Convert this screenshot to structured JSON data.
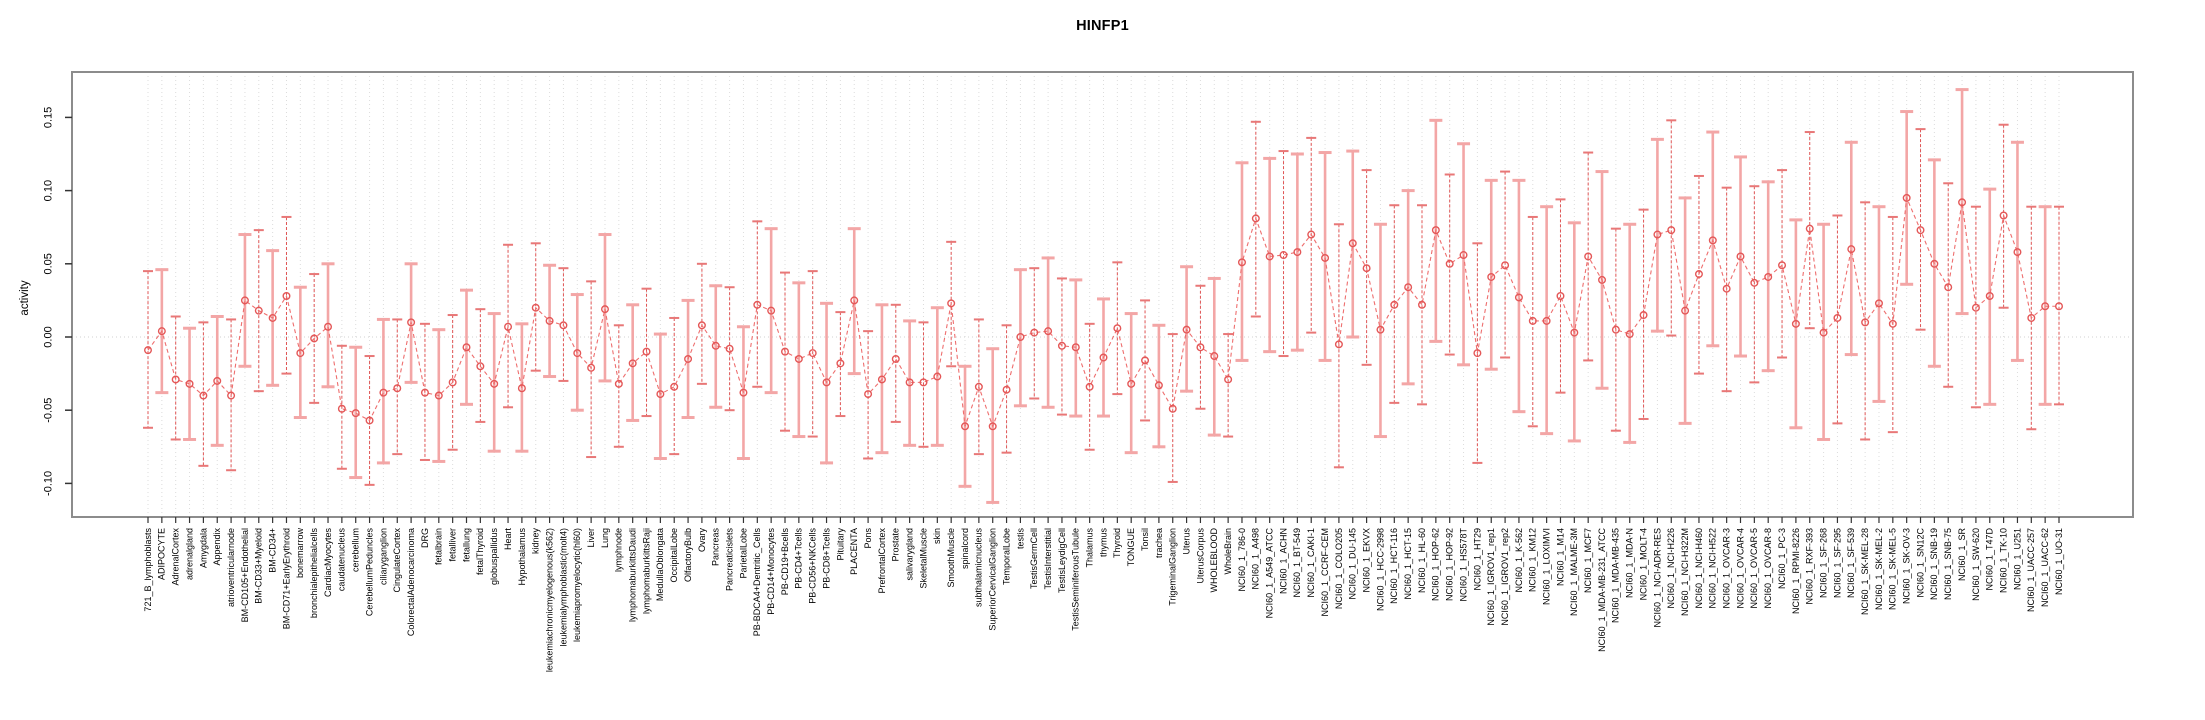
{
  "chart_data": {
    "type": "scatter",
    "error_bars": true,
    "title": "HINFP1",
    "xlabel": "",
    "ylabel": "activity",
    "ylim": [
      -0.123,
      0.181
    ],
    "yticks": [
      0.15,
      0.1,
      0.05,
      0.0,
      -0.05,
      -0.1
    ],
    "x_tick_rotation": -90,
    "grid": "vertical dotted line per category, dotted horizontal line at zero",
    "legend": "none",
    "point_color": "#e45757",
    "bar_color_a": "#e05555",
    "bar_color_b": "#f3a6a6",
    "line_color": "#ee6e6e",
    "categories": [
      "721_B_lymphoblasts",
      "ADIPOCYTE",
      "AdrenalCortex",
      "adrenalgland",
      "Amygdala",
      "Appendix",
      "atrioventricularnode",
      "BM-CD105+Endothelial",
      "BM-CD33+Myeloid",
      "BM-CD34+",
      "BM-CD71+EarlyErythroid",
      "bonemarrow",
      "bronchialepithelialcells",
      "CardiacMyocytes",
      "caudatenucleus",
      "cerebellum",
      "CerebellumPeduncles",
      "ciliaryganglion",
      "CingulateCortex",
      "ColorectalAdenocarcinoma",
      "DRG",
      "fetalbrain",
      "fetalliver",
      "fetallung",
      "fetalThyroid",
      "globuspallidus",
      "Heart",
      "Hypothalamus",
      "kidney",
      "leukemiachronicmyelogenous(k562)",
      "leukemialymphoblastic(molt4)",
      "leukemiapromyelocytic(hl60)",
      "Liver",
      "Lung",
      "lymphnode",
      "lymphomaburkittsDaudi",
      "lymphomaburkittsRaji",
      "MedullaOblongata",
      "OccipitalLobe",
      "OlfactoryBulb",
      "Ovary",
      "Pancreas",
      "Pancreaticislets",
      "ParietalLobe",
      "PB-BDCA4+Dentritic_Cells",
      "PB-CD14+Monocytes",
      "PB-CD19+Bcells",
      "PB-CD4+Tcells",
      "PB-CD56+NKCells",
      "PB-CD8+Tcells",
      "Pituitary",
      "PLACENTA",
      "Pons",
      "PrefrontalCortex",
      "Prostate",
      "salivarygland",
      "SkeletalMuscle",
      "skin",
      "SmoothMuscle",
      "spinalcord",
      "subthalamicnucleus",
      "SuperiorCervicalGanglion",
      "TemporalLobe",
      "testis",
      "TestisGermCell",
      "TestisInterstitial",
      "TestisLeydigCell",
      "TestisSeminiferousTubule",
      "Thalamus",
      "thymus",
      "Thyroid",
      "TONGUE",
      "Tonsil",
      "trachea",
      "TrigeminalGanglion",
      "Uterus",
      "UterusCorpus",
      "WHOLEBLOOD",
      "WholeBrain",
      "NCI60_1_786-0",
      "NCI60_1_A498",
      "NCI60_1_A549_ATCC",
      "NCI60_1_ACHN",
      "NCI60_1_BT-549",
      "NCI60_1_CAKI-1",
      "NCI60_1_CCRF-CEM",
      "NCI60_1_COLO205",
      "NCI60_1_DU-145",
      "NCI60_1_EKVX",
      "NCI60_1_HCC-2998",
      "NCI60_1_HCT-116",
      "NCI60_1_HCT-15",
      "NCI60_1_HL-60",
      "NCI60_1_HOP-62",
      "NCI60_1_HOP-92",
      "NCI60_1_HS578T",
      "NCI60_1_HT29",
      "NCI60_1_IGROV1_rep1",
      "NCI60_1_IGROV1_rep2",
      "NCI60_1_K-562",
      "NCI60_1_KM12",
      "NCI60_1_LOXIMVI",
      "NCI60_1_M14",
      "NCI60_1_MALME-3M",
      "NCI60_1_MCF7",
      "NCI60_1_MDA-MB-231_ATCC",
      "NCI60_1_MDA-MB-435",
      "NCI60_1_MDA-N",
      "NCI60_1_MOLT-4",
      "NCI60_1_NCI-ADR-RES",
      "NCI60_1_NCI-H226",
      "NCI60_1_NCI-H322M",
      "NCI60_1_NCI-H460",
      "NCI60_1_NCI-H522",
      "NCI60_1_OVCAR-3",
      "NCI60_1_OVCAR-4",
      "NCI60_1_OVCAR-5",
      "NCI60_1_OVCAR-8",
      "NCI60_1_PC-3",
      "NCI60_1_RPMI-8226",
      "NCI60_1_RXF-393",
      "NCI60_1_SF-268",
      "NCI60_1_SF-295",
      "NCI60_1_SF-539",
      "NCI60_1_SK-MEL-28",
      "NCI60_1_SK-MEL-2",
      "NCI60_1_SK-MEL-5",
      "NCI60_1_SK-OV-3",
      "NCI60_1_SN12C",
      "NCI60_1_SNB-19",
      "NCI60_1_SNB-75",
      "NCI60_1_SR",
      "NCI60_1_SW-620",
      "NCI60_1_T47D",
      "NCI60_1_TK-10",
      "NCI60_1_U251",
      "NCI60_1_UACC-257",
      "NCI60_1_UACC-62",
      "NCI60_1_UO-31"
    ],
    "series": [
      {
        "name": "activity",
        "values": [
          -0.009,
          0.004,
          -0.029,
          -0.032,
          -0.04,
          -0.03,
          -0.04,
          0.025,
          0.018,
          0.013,
          0.028,
          -0.011,
          -0.001,
          0.007,
          -0.049,
          -0.052,
          -0.057,
          -0.038,
          -0.035,
          0.01,
          -0.038,
          -0.04,
          -0.031,
          -0.007,
          -0.02,
          -0.032,
          0.007,
          -0.035,
          0.02,
          0.011,
          0.008,
          -0.011,
          -0.021,
          0.019,
          -0.032,
          -0.018,
          -0.01,
          -0.039,
          -0.034,
          -0.015,
          0.008,
          -0.006,
          -0.008,
          -0.038,
          0.022,
          0.018,
          -0.01,
          -0.015,
          -0.011,
          -0.031,
          -0.018,
          0.025,
          -0.039,
          -0.029,
          -0.015,
          -0.031,
          -0.031,
          -0.027,
          0.023,
          -0.061,
          -0.034,
          -0.061,
          -0.036,
          0.0,
          0.003,
          0.004,
          -0.006,
          -0.007,
          -0.034,
          -0.014,
          0.006,
          -0.032,
          -0.016,
          -0.033,
          -0.049,
          0.005,
          -0.007,
          -0.013,
          -0.029,
          0.051,
          0.081,
          0.055,
          0.056,
          0.058,
          0.07,
          0.054,
          -0.005,
          0.064,
          0.047,
          0.005,
          0.022,
          0.034,
          0.022,
          0.073,
          0.05,
          0.056,
          -0.011,
          0.041,
          0.049,
          0.027,
          0.011,
          0.011,
          0.028,
          0.003,
          0.055,
          0.039,
          0.005,
          0.002,
          0.015,
          0.07,
          0.073,
          0.018,
          0.043,
          0.066,
          0.033,
          0.055,
          0.037,
          0.041,
          0.049,
          0.009,
          0.074,
          0.003,
          0.013,
          0.06,
          0.01,
          0.023,
          0.009,
          0.095,
          0.073,
          0.05,
          0.034,
          0.092,
          0.02,
          0.028,
          0.083,
          0.058,
          0.013,
          0.021,
          0.021
        ],
        "lower": [
          -0.062,
          -0.038,
          -0.07,
          -0.07,
          -0.088,
          -0.074,
          -0.091,
          -0.02,
          -0.037,
          -0.033,
          -0.025,
          -0.055,
          -0.045,
          -0.034,
          -0.09,
          -0.096,
          -0.101,
          -0.086,
          -0.08,
          -0.031,
          -0.084,
          -0.085,
          -0.077,
          -0.046,
          -0.058,
          -0.078,
          -0.048,
          -0.078,
          -0.023,
          -0.027,
          -0.03,
          -0.05,
          -0.082,
          -0.03,
          -0.075,
          -0.057,
          -0.054,
          -0.083,
          -0.08,
          -0.055,
          -0.032,
          -0.048,
          -0.05,
          -0.083,
          -0.034,
          -0.038,
          -0.064,
          -0.068,
          -0.068,
          -0.086,
          -0.054,
          -0.025,
          -0.083,
          -0.079,
          -0.058,
          -0.074,
          -0.075,
          -0.074,
          -0.02,
          -0.102,
          -0.08,
          -0.113,
          -0.079,
          -0.047,
          -0.042,
          -0.048,
          -0.053,
          -0.054,
          -0.077,
          -0.054,
          -0.039,
          -0.079,
          -0.057,
          -0.075,
          -0.099,
          -0.037,
          -0.049,
          -0.067,
          -0.068,
          -0.016,
          0.014,
          -0.01,
          -0.013,
          -0.009,
          0.003,
          -0.016,
          -0.089,
          0.0,
          -0.019,
          -0.068,
          -0.045,
          -0.032,
          -0.046,
          -0.003,
          -0.012,
          -0.019,
          -0.086,
          -0.022,
          -0.014,
          -0.051,
          -0.061,
          -0.066,
          -0.038,
          -0.071,
          -0.016,
          -0.035,
          -0.064,
          -0.072,
          -0.056,
          0.004,
          0.001,
          -0.059,
          -0.025,
          -0.006,
          -0.037,
          -0.013,
          -0.031,
          -0.023,
          -0.014,
          -0.062,
          0.006,
          -0.07,
          -0.059,
          -0.012,
          -0.07,
          -0.044,
          -0.065,
          0.036,
          0.005,
          -0.02,
          -0.034,
          0.016,
          -0.048,
          -0.046,
          0.02,
          -0.016,
          -0.063,
          -0.046,
          -0.046
        ],
        "upper": [
          0.045,
          0.046,
          0.014,
          0.006,
          0.01,
          0.014,
          0.012,
          0.07,
          0.073,
          0.059,
          0.082,
          0.034,
          0.043,
          0.05,
          -0.006,
          -0.007,
          -0.013,
          0.012,
          0.012,
          0.05,
          0.009,
          0.005,
          0.015,
          0.032,
          0.019,
          0.016,
          0.063,
          0.009,
          0.064,
          0.049,
          0.047,
          0.029,
          0.038,
          0.07,
          0.008,
          0.022,
          0.033,
          0.002,
          0.013,
          0.025,
          0.05,
          0.035,
          0.034,
          0.007,
          0.079,
          0.074,
          0.044,
          0.037,
          0.045,
          0.023,
          0.017,
          0.074,
          0.004,
          0.022,
          0.022,
          0.011,
          0.01,
          0.02,
          0.065,
          -0.02,
          0.012,
          -0.008,
          0.008,
          0.046,
          0.047,
          0.054,
          0.04,
          0.039,
          0.009,
          0.026,
          0.051,
          0.016,
          0.025,
          0.008,
          0.002,
          0.048,
          0.035,
          0.04,
          0.002,
          0.119,
          0.147,
          0.122,
          0.127,
          0.125,
          0.136,
          0.126,
          0.077,
          0.127,
          0.114,
          0.077,
          0.09,
          0.1,
          0.09,
          0.148,
          0.111,
          0.132,
          0.064,
          0.107,
          0.113,
          0.107,
          0.082,
          0.089,
          0.094,
          0.078,
          0.126,
          0.113,
          0.074,
          0.077,
          0.087,
          0.135,
          0.148,
          0.095,
          0.11,
          0.14,
          0.102,
          0.123,
          0.103,
          0.106,
          0.114,
          0.08,
          0.14,
          0.077,
          0.083,
          0.133,
          0.092,
          0.089,
          0.082,
          0.154,
          0.142,
          0.121,
          0.105,
          0.169,
          0.089,
          0.101,
          0.145,
          0.133,
          0.089,
          0.089,
          0.089
        ]
      }
    ]
  }
}
